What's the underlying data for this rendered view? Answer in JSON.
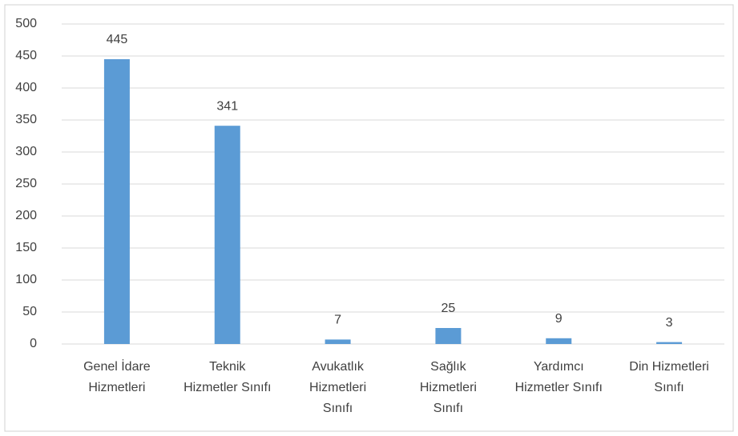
{
  "chart_data": {
    "type": "bar",
    "categories": [
      "Genel İdare Hizmetleri",
      "Teknik Hizmetler Sınıfı",
      "Avukatlık Hizmetleri Sınıfı",
      "Sağlık Hizmetleri Sınıfı",
      "Yardımcı Hizmetler Sınıfı",
      "Din Hizmetleri Sınıfı"
    ],
    "values": [
      445,
      341,
      7,
      25,
      9,
      3
    ],
    "color": "#5b9bd5",
    "ylim": [
      0,
      500
    ],
    "yticks": [
      0,
      50,
      100,
      150,
      200,
      250,
      300,
      350,
      400,
      450,
      500
    ],
    "grid": true
  }
}
